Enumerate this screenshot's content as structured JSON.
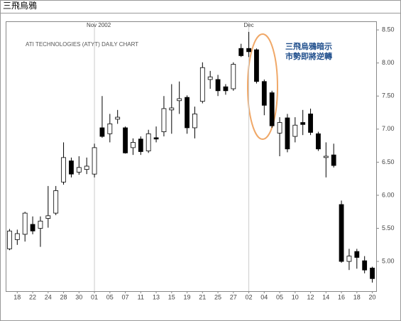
{
  "chart_data": {
    "type": "candlestick",
    "title": "三飛烏鴉",
    "subtitle": "ATI TECHNOLOGIES (ATYT) DAILY CHART",
    "month_labels": [
      "Nov 2002",
      "Dec"
    ],
    "annotation": [
      "三飛烏鴉暗示",
      "市勢即將逆轉"
    ],
    "categories": [
      null,
      "18",
      null,
      "22",
      null,
      "24",
      null,
      "28",
      null,
      "30",
      null,
      "01",
      null,
      "05",
      null,
      "07",
      null,
      "11",
      null,
      "13",
      null,
      "15",
      null,
      "19",
      null,
      "21",
      null,
      "25",
      null,
      "27",
      null,
      "02",
      null,
      "04",
      null,
      "05",
      null,
      "10",
      null,
      "12",
      null,
      "14",
      null,
      "16",
      null,
      "18",
      null,
      "20"
    ],
    "open": [
      5.19,
      5.33,
      5.41,
      5.56,
      5.5,
      5.65,
      5.73,
      6.2,
      6.52,
      6.35,
      6.39,
      6.32,
      7.02,
      6.93,
      7.15,
      7.02,
      6.72,
      6.85,
      6.67,
      6.87,
      6.96,
      7.29,
      7.43,
      7.48,
      7.02,
      7.42,
      7.75,
      7.75,
      7.64,
      7.61,
      8.22,
      8.22,
      8.2,
      7.72,
      7.55,
      6.94,
      7.17,
      6.89,
      7.1,
      7.23,
      6.93,
      6.57,
      6.61,
      5.86,
      5.0,
      5.15,
      5.01,
      4.9
    ],
    "high": [
      5.49,
      5.48,
      5.75,
      5.68,
      5.68,
      6.14,
      6.14,
      6.8,
      6.57,
      6.59,
      6.57,
      6.78,
      7.5,
      7.23,
      7.29,
      7.04,
      6.86,
      6.89,
      6.99,
      7.04,
      7.5,
      7.68,
      7.72,
      7.51,
      7.34,
      8.01,
      7.88,
      7.82,
      7.68,
      8.01,
      8.29,
      8.47,
      8.22,
      7.75,
      7.58,
      7.18,
      7.23,
      7.18,
      7.29,
      7.31,
      6.96,
      6.8,
      6.78,
      5.92,
      5.19,
      5.19,
      5.08,
      4.92
    ],
    "low": [
      5.17,
      5.25,
      5.3,
      5.41,
      5.22,
      5.51,
      5.7,
      6.16,
      6.27,
      6.31,
      6.32,
      6.27,
      6.87,
      6.8,
      7.08,
      6.63,
      6.61,
      6.61,
      6.64,
      6.8,
      6.89,
      6.93,
      7.23,
      6.93,
      6.86,
      7.39,
      7.61,
      7.5,
      7.52,
      7.58,
      8.09,
      8.09,
      7.69,
      7.21,
      7.02,
      6.59,
      6.65,
      6.8,
      6.91,
      6.91,
      6.67,
      6.27,
      6.42,
      4.98,
      4.87,
      4.89,
      4.82,
      4.68
    ],
    "close": [
      5.46,
      5.42,
      5.73,
      5.46,
      5.61,
      5.69,
      6.07,
      6.57,
      6.32,
      6.42,
      6.44,
      6.72,
      6.89,
      7.08,
      7.18,
      6.64,
      6.8,
      6.66,
      6.93,
      6.85,
      7.31,
      7.32,
      7.46,
      7.02,
      7.23,
      7.93,
      7.79,
      7.58,
      7.58,
      7.98,
      8.11,
      8.17,
      7.72,
      7.36,
      7.05,
      7.1,
      6.7,
      7.06,
      7.07,
      6.95,
      6.7,
      6.59,
      6.45,
      5.0,
      5.08,
      5.06,
      4.87,
      4.74
    ],
    "up_color": "#ffffff",
    "down_color": "#000000",
    "ylim": [
      4.55,
      8.63
    ],
    "yticks": [
      {
        "value": 5.0,
        "label": "5.00"
      },
      {
        "value": 5.5,
        "label": "5.50"
      },
      {
        "value": 6.0,
        "label": "6.00"
      },
      {
        "value": 6.5,
        "label": "6.50"
      },
      {
        "value": 7.0,
        "label": "7.00"
      },
      {
        "value": 7.5,
        "label": "7.50"
      },
      {
        "value": 8.0,
        "label": "8.00"
      },
      {
        "value": 8.5,
        "label": "8.50"
      }
    ]
  }
}
